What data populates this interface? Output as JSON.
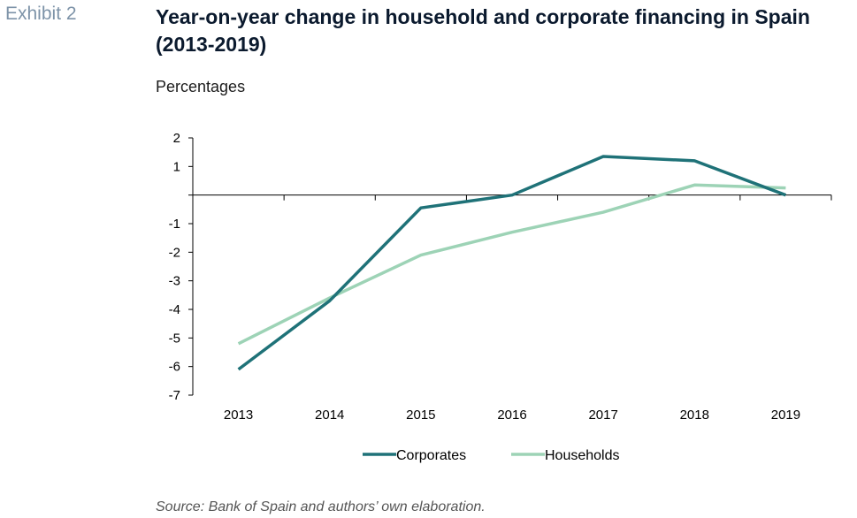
{
  "exhibit_label": "Exhibit 2",
  "title": "Year-on-year change in household and corporate financing in Spain (2013-2019)",
  "subtitle": "Percentages",
  "source": "Source: Bank of Spain and authors’ own elaboration.",
  "colors": {
    "corporates": "#1f7278",
    "households": "#9dd3b6"
  },
  "chart_data": {
    "type": "line",
    "categories": [
      "2013",
      "2014",
      "2015",
      "2016",
      "2017",
      "2018",
      "2019"
    ],
    "series": [
      {
        "name": "Corporates",
        "values": [
          -6.1,
          -3.7,
          -0.45,
          0.0,
          1.35,
          1.2,
          0.0
        ]
      },
      {
        "name": "Households",
        "values": [
          -5.2,
          -3.6,
          -2.1,
          -1.3,
          -0.6,
          0.35,
          0.25
        ]
      }
    ],
    "ylim": [
      -7,
      2
    ],
    "yticks": [
      -7,
      -6,
      -5,
      -4,
      -3,
      -2,
      -1,
      0,
      1,
      2
    ],
    "ytick_labels": [
      "-7",
      "-6",
      "-5",
      "-4",
      "-3",
      "-2",
      "-1",
      "",
      "1",
      "2"
    ],
    "legend_position": "bottom",
    "grid": false
  }
}
